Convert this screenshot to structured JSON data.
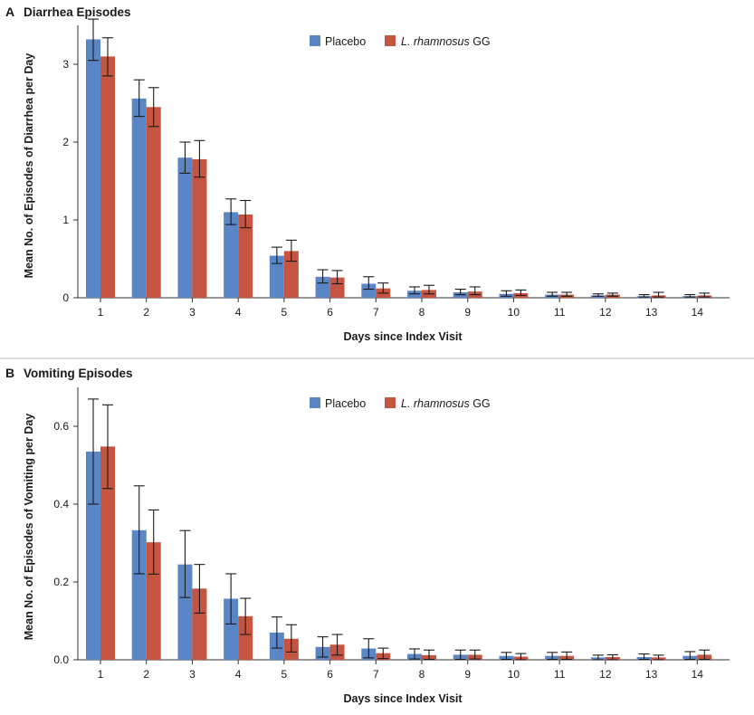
{
  "colors": {
    "placebo": "#5b86c5",
    "lgg": "#c55540",
    "text": "#1a1a1a"
  },
  "chart_data": [
    {
      "type": "bar",
      "panel": "A",
      "title": "Diarrhea Episodes",
      "xlabel": "Days since Index Visit",
      "ylabel": "Mean No. of Episodes of Diarrhea per Day",
      "ylim": [
        0,
        3.5
      ],
      "yticks": [
        0,
        1,
        2,
        3
      ],
      "ytick_labels": [
        "0",
        "1",
        "2",
        "3"
      ],
      "categories": [
        "1",
        "2",
        "3",
        "4",
        "5",
        "6",
        "7",
        "8",
        "9",
        "10",
        "11",
        "12",
        "13",
        "14"
      ],
      "legend": {
        "placement": "top-center"
      },
      "series": [
        {
          "name": "Placebo",
          "values": [
            3.32,
            2.56,
            1.8,
            1.1,
            0.54,
            0.27,
            0.18,
            0.09,
            0.07,
            0.05,
            0.04,
            0.03,
            0.02,
            0.02
          ],
          "err_low": [
            3.05,
            2.33,
            1.6,
            0.94,
            0.44,
            0.19,
            0.11,
            0.05,
            0.04,
            0.02,
            0.02,
            0.02,
            0.01,
            0.01
          ],
          "err_high": [
            3.58,
            2.8,
            2.0,
            1.27,
            0.65,
            0.36,
            0.27,
            0.14,
            0.11,
            0.09,
            0.07,
            0.05,
            0.04,
            0.04
          ]
        },
        {
          "name_prefix": "L. rhamnosus",
          "name_suffix": " GG",
          "name": "L. rhamnosus GG",
          "values": [
            3.1,
            2.45,
            1.78,
            1.07,
            0.6,
            0.26,
            0.12,
            0.1,
            0.08,
            0.06,
            0.04,
            0.04,
            0.03,
            0.03
          ],
          "err_low": [
            2.85,
            2.2,
            1.55,
            0.9,
            0.47,
            0.18,
            0.06,
            0.05,
            0.04,
            0.03,
            0.02,
            0.02,
            0.01,
            0.01
          ],
          "err_high": [
            3.34,
            2.7,
            2.02,
            1.25,
            0.74,
            0.35,
            0.19,
            0.16,
            0.14,
            0.1,
            0.07,
            0.06,
            0.07,
            0.06
          ]
        }
      ]
    },
    {
      "type": "bar",
      "panel": "B",
      "title": "Vomiting Episodes",
      "xlabel": "Days since Index Visit",
      "ylabel": "Mean No. of Episodes of Vomiting per Day",
      "ylim": [
        0,
        0.7
      ],
      "yticks": [
        0,
        0.2,
        0.4,
        0.6
      ],
      "ytick_labels": [
        "0.0",
        "0.2",
        "0.4",
        "0.6"
      ],
      "categories": [
        "1",
        "2",
        "3",
        "4",
        "5",
        "6",
        "7",
        "8",
        "9",
        "10",
        "11",
        "12",
        "13",
        "14"
      ],
      "legend": {
        "placement": "top-center"
      },
      "series": [
        {
          "name": "Placebo",
          "values": [
            0.535,
            0.333,
            0.245,
            0.157,
            0.07,
            0.033,
            0.029,
            0.015,
            0.013,
            0.01,
            0.01,
            0.006,
            0.007,
            0.01
          ],
          "err_low": [
            0.4,
            0.221,
            0.16,
            0.092,
            0.03,
            0.007,
            0.005,
            0.002,
            0.001,
            0.001,
            0.001,
            0.0,
            0.001,
            0.001
          ],
          "err_high": [
            0.67,
            0.447,
            0.332,
            0.221,
            0.11,
            0.059,
            0.054,
            0.028,
            0.025,
            0.019,
            0.019,
            0.012,
            0.015,
            0.021
          ]
        },
        {
          "name_prefix": "L. rhamnosus",
          "name_suffix": " GG",
          "name": "L. rhamnosus GG",
          "values": [
            0.548,
            0.302,
            0.183,
            0.112,
            0.054,
            0.039,
            0.017,
            0.012,
            0.013,
            0.008,
            0.01,
            0.007,
            0.006,
            0.013
          ],
          "err_low": [
            0.44,
            0.22,
            0.12,
            0.065,
            0.02,
            0.012,
            0.003,
            0.001,
            0.002,
            0.0,
            0.001,
            0.0,
            0.0,
            0.001
          ],
          "err_high": [
            0.655,
            0.385,
            0.245,
            0.158,
            0.09,
            0.065,
            0.03,
            0.025,
            0.025,
            0.016,
            0.02,
            0.013,
            0.012,
            0.025
          ]
        }
      ]
    }
  ]
}
